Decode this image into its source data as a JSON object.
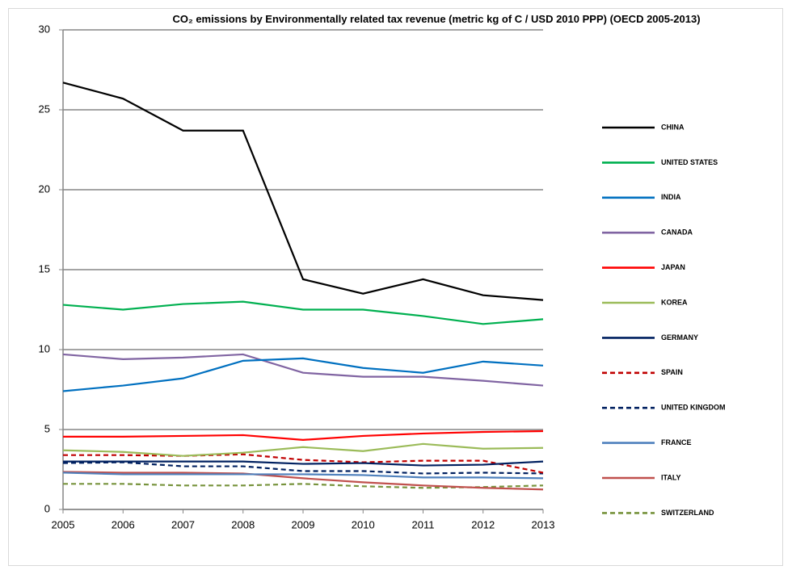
{
  "chart_data": {
    "type": "line",
    "title": "CO₂ emissions by Environmentally related tax revenue  (metric kg of C / USD 2010  PPP) (OECD 2005-2013)",
    "categories": [
      "2005",
      "2006",
      "2007",
      "2008",
      "2009",
      "2010",
      "2011",
      "2012",
      "2013"
    ],
    "ylim": [
      0,
      30
    ],
    "yticks": [
      0,
      5,
      10,
      15,
      20,
      25,
      30
    ],
    "grid": true,
    "legend": "right",
    "series": [
      {
        "name": "CHINA",
        "color": "#000000",
        "dashed": false,
        "values": [
          26.7,
          25.7,
          23.7,
          23.7,
          14.4,
          13.5,
          14.4,
          13.4,
          13.1
        ]
      },
      {
        "name": "UNITED STATES",
        "color": "#00b050",
        "dashed": false,
        "values": [
          12.8,
          12.5,
          12.85,
          13.0,
          12.5,
          12.5,
          12.1,
          11.6,
          11.9
        ]
      },
      {
        "name": "INDIA",
        "color": "#0070c0",
        "dashed": false,
        "values": [
          7.4,
          7.75,
          8.2,
          9.3,
          9.45,
          8.85,
          8.55,
          9.25,
          9.0
        ]
      },
      {
        "name": "CANADA",
        "color": "#8064a2",
        "dashed": false,
        "values": [
          9.7,
          9.4,
          9.5,
          9.7,
          8.55,
          8.3,
          8.3,
          8.05,
          7.75
        ]
      },
      {
        "name": "JAPAN",
        "color": "#ff0000",
        "dashed": false,
        "values": [
          4.55,
          4.55,
          4.6,
          4.65,
          4.35,
          4.6,
          4.75,
          4.85,
          4.9
        ]
      },
      {
        "name": "KOREA",
        "color": "#9bbb59",
        "dashed": false,
        "values": [
          3.7,
          3.6,
          3.35,
          3.55,
          3.9,
          3.65,
          4.1,
          3.8,
          3.85
        ]
      },
      {
        "name": "GERMANY",
        "color": "#002060",
        "dashed": false,
        "values": [
          3.0,
          3.0,
          3.0,
          3.0,
          2.85,
          2.9,
          2.75,
          2.8,
          3.0
        ]
      },
      {
        "name": "SPAIN",
        "color": "#c00000",
        "dashed": true,
        "values": [
          3.4,
          3.4,
          3.35,
          3.45,
          3.1,
          2.95,
          3.05,
          3.05,
          2.3
        ]
      },
      {
        "name": "UNITED KINGDOM",
        "color": "#002060",
        "dashed": true,
        "values": [
          2.9,
          2.95,
          2.7,
          2.7,
          2.4,
          2.4,
          2.25,
          2.3,
          2.25
        ]
      },
      {
        "name": "FRANCE",
        "color": "#4f81bd",
        "dashed": false,
        "values": [
          2.3,
          2.2,
          2.2,
          2.2,
          2.2,
          2.15,
          2.0,
          2.0,
          1.95
        ]
      },
      {
        "name": "ITALY",
        "color": "#c0504d",
        "dashed": false,
        "values": [
          2.35,
          2.3,
          2.3,
          2.25,
          1.95,
          1.7,
          1.5,
          1.35,
          1.25
        ]
      },
      {
        "name": "SWITZERLAND",
        "color": "#77933c",
        "dashed": true,
        "values": [
          1.6,
          1.6,
          1.5,
          1.5,
          1.6,
          1.45,
          1.35,
          1.4,
          1.5
        ]
      }
    ]
  }
}
